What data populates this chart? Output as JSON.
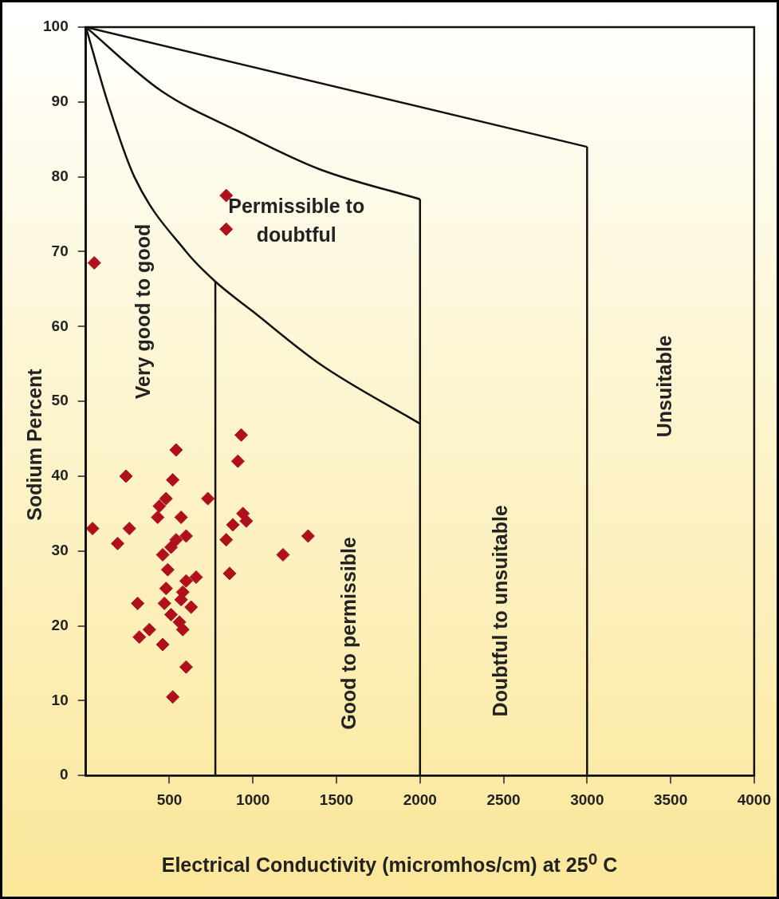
{
  "chart_data": {
    "type": "scatter",
    "xlabel": "Electrical Conductivity (micromhos/cm) at 25$^{0}$ C",
    "ylabel": "Sodium Percent",
    "xlim": [
      0,
      4000
    ],
    "xticks": [
      500,
      1000,
      1500,
      2000,
      2500,
      3000,
      3500,
      4000
    ],
    "ylim": [
      0,
      100
    ],
    "yticks": [
      0,
      10,
      20,
      30,
      40,
      50,
      60,
      70,
      80,
      90,
      100
    ],
    "grid": false,
    "legend": false,
    "series": [
      {
        "color": "#b0101c",
        "marker": "diamond",
        "x": [
          930,
          540,
          910,
          240,
          520,
          730,
          480,
          440,
          430,
          570,
          940,
          960,
          880,
          40,
          260,
          600,
          540,
          840,
          1330,
          190,
          510,
          460,
          1180,
          490,
          860,
          660,
          600,
          480,
          580,
          570,
          470,
          310,
          630,
          510,
          560,
          580,
          380,
          320,
          460,
          600,
          520,
          50,
          840,
          840
        ],
        "values": [
          45.5,
          43.5,
          42,
          40,
          39.5,
          37,
          37,
          36,
          34.5,
          34.5,
          35,
          34,
          33.5,
          33,
          33,
          32,
          31.5,
          31.5,
          32,
          31,
          30.5,
          29.5,
          29.5,
          27.5,
          27,
          26.5,
          26,
          25,
          24.5,
          23.5,
          23,
          23,
          22.5,
          21.5,
          20.5,
          19.5,
          19.5,
          18.5,
          17.5,
          14.5,
          10.5,
          68.5,
          77.5,
          73
        ]
      },
      {
        "type": "line",
        "color": "#111111",
        "marker": "none",
        "x": [
          0,
          130,
          290,
          600,
          775,
          1000,
          1400,
          2000
        ],
        "values": [
          100,
          90,
          80,
          70,
          66,
          62,
          55,
          47
        ]
      },
      {
        "type": "line",
        "color": "#111111",
        "marker": "none",
        "x": [
          0,
          450,
          920,
          1400,
          2000
        ],
        "values": [
          100,
          91.5,
          86,
          81,
          77
        ]
      },
      {
        "type": "line",
        "color": "#111111",
        "marker": "none",
        "x": [
          0,
          3000
        ],
        "values": [
          100,
          84
        ]
      },
      {
        "type": "line",
        "color": "#111111",
        "marker": "none",
        "x": [
          775,
          775
        ],
        "values": [
          0,
          66
        ]
      },
      {
        "type": "line",
        "color": "#111111",
        "marker": "none",
        "x": [
          2000,
          2000
        ],
        "values": [
          0,
          77
        ]
      },
      {
        "type": "line",
        "color": "#111111",
        "marker": "none",
        "x": [
          3000,
          3000
        ],
        "values": [
          0,
          84
        ]
      }
    ],
    "annotations": [
      "Permissible to doubtful",
      "Very good to good",
      "Good to permissible",
      "Doubtful to unsuitable",
      "Unsuitable"
    ]
  }
}
